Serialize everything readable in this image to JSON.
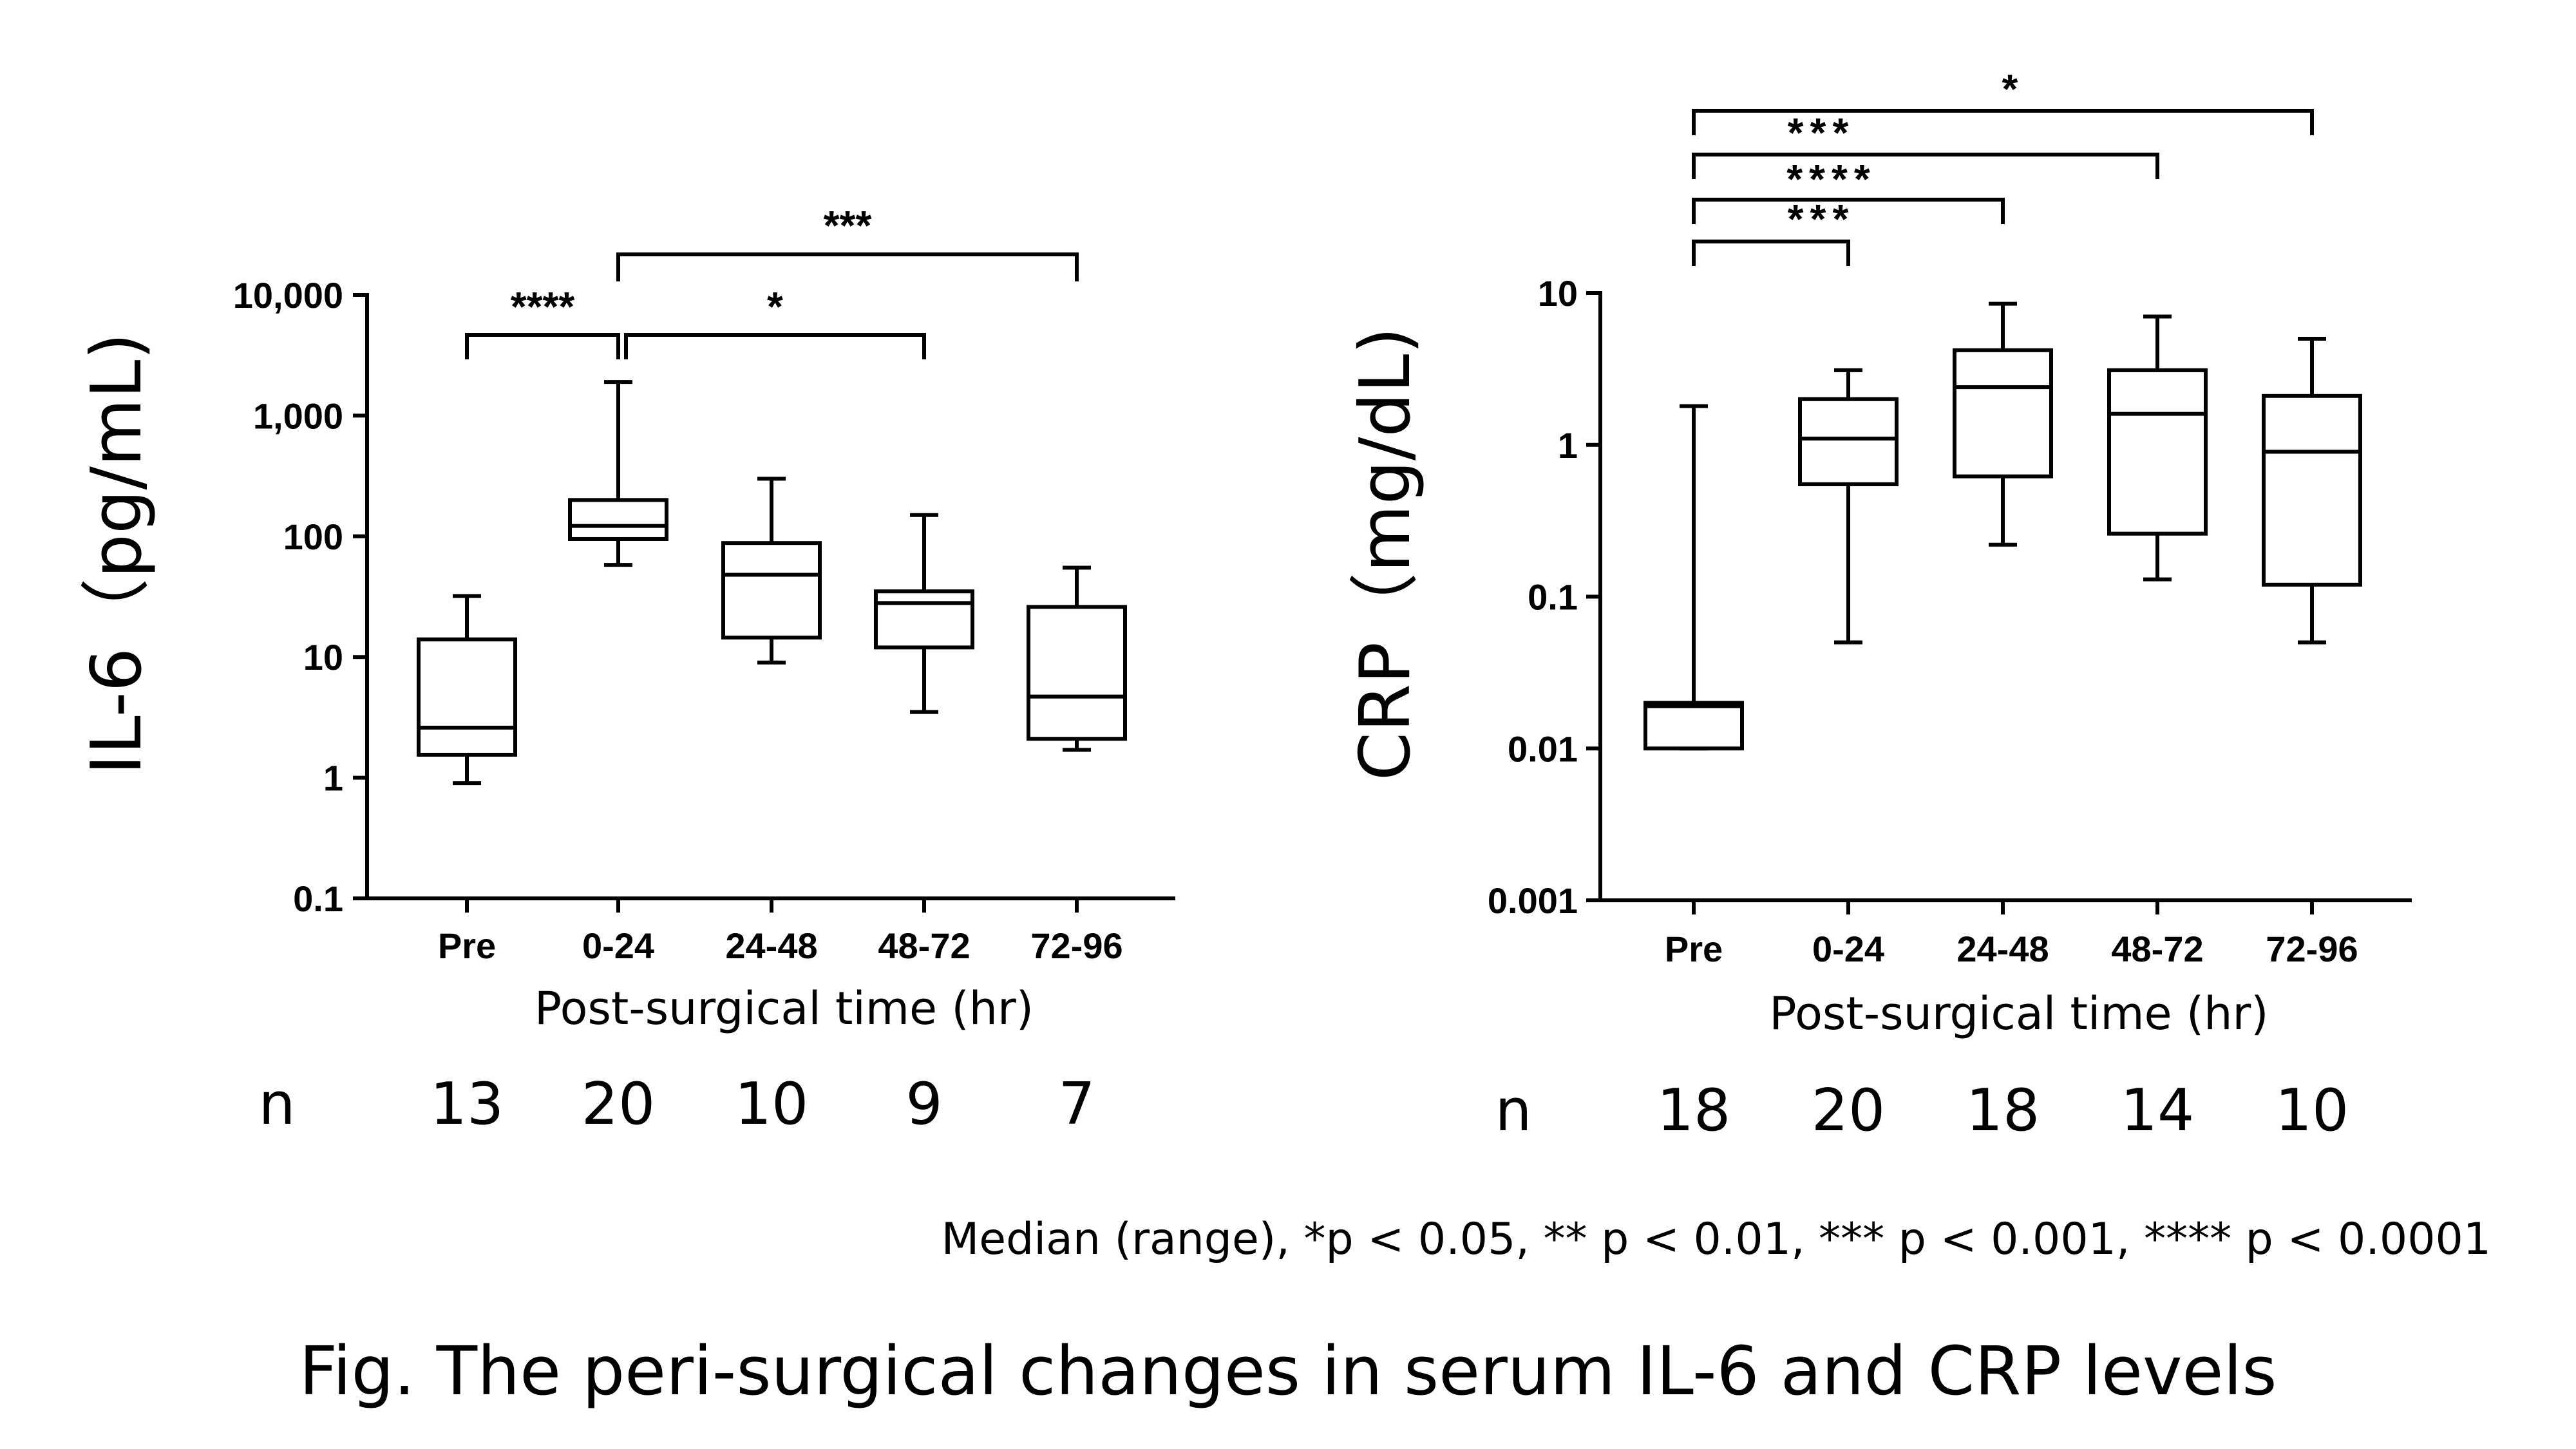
{
  "chart_data": [
    {
      "type": "box",
      "ylabel": "IL-6（pg/mL)",
      "xlabel": "Post-surgical time (hr)",
      "yscale": "log",
      "ylim": [
        0.1,
        10000
      ],
      "yticks": [
        0.1,
        1,
        10,
        100,
        1000,
        10000
      ],
      "ytick_labels": [
        "0.1",
        "1",
        "10",
        "100",
        "1,000",
        "10,000"
      ],
      "categories": [
        "Pre",
        "0-24",
        "24-48",
        "48-72",
        "72-96"
      ],
      "n_label": "n",
      "n": [
        "13",
        "20",
        "10",
        "9",
        "7"
      ],
      "boxes": [
        {
          "min": 0.9,
          "q1": 1.55,
          "median": 2.6,
          "q3": 14,
          "max": 32
        },
        {
          "min": 58,
          "q1": 95,
          "median": 122,
          "q3": 200,
          "max": 1900
        },
        {
          "min": 9,
          "q1": 14.5,
          "median": 48,
          "q3": 88,
          "max": 300
        },
        {
          "min": 3.5,
          "q1": 12,
          "median": 28,
          "q3": 35,
          "max": 150
        },
        {
          "min": 1.7,
          "q1": 2.1,
          "median": 4.7,
          "q3": 26,
          "max": 55
        }
      ],
      "significance": [
        {
          "from": "Pre",
          "to": "0-24",
          "label": "****"
        },
        {
          "from": "0-24",
          "to": "48-72",
          "label": "*"
        },
        {
          "from": "0-24",
          "to": "72-96",
          "label": "***"
        }
      ]
    },
    {
      "type": "box",
      "ylabel": "CRP（mg/dL)",
      "xlabel": "Post-surgical time (hr)",
      "yscale": "log",
      "ylim": [
        0.001,
        10
      ],
      "yticks": [
        0.001,
        0.01,
        0.1,
        1,
        10
      ],
      "ytick_labels": [
        "0.001",
        "0.01",
        "0.1",
        "1",
        "10"
      ],
      "categories": [
        "Pre",
        "0-24",
        "24-48",
        "48-72",
        "72-96"
      ],
      "n_label": "n",
      "n": [
        "18",
        "20",
        "18",
        "14",
        "10"
      ],
      "boxes": [
        {
          "min": 0.01,
          "q1": 0.01,
          "median": 0.019,
          "q3": 0.02,
          "max": 1.8
        },
        {
          "min": 0.05,
          "q1": 0.55,
          "median": 1.1,
          "q3": 2.0,
          "max": 3.1
        },
        {
          "min": 0.22,
          "q1": 0.62,
          "median": 2.4,
          "q3": 4.2,
          "max": 8.5
        },
        {
          "min": 0.13,
          "q1": 0.26,
          "median": 1.6,
          "q3": 3.1,
          "max": 7.0
        },
        {
          "min": 0.05,
          "q1": 0.12,
          "median": 0.9,
          "q3": 2.1,
          "max": 5.0
        }
      ],
      "significance": [
        {
          "from": "Pre",
          "to": "0-24",
          "label": "***"
        },
        {
          "from": "Pre",
          "to": "24-48",
          "label": "****"
        },
        {
          "from": "Pre",
          "to": "48-72",
          "label": "***"
        },
        {
          "from": "Pre",
          "to": "72-96",
          "label": "*"
        }
      ]
    }
  ],
  "footnote": "Median (range), *p < 0.05, ** p < 0.01, *** p < 0.001, **** p < 0.0001",
  "caption": "Fig. The peri-surgical changes in serum IL-6 and CRP levels"
}
